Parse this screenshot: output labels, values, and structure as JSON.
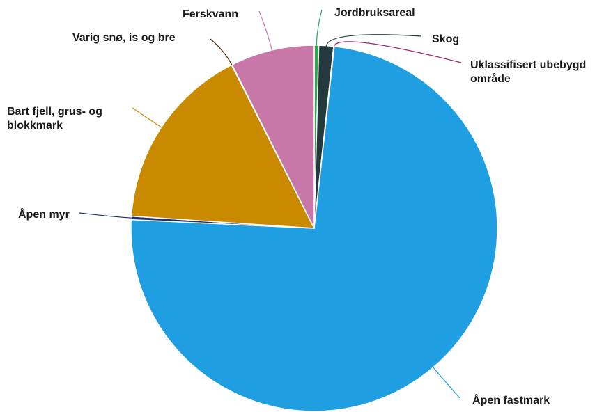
{
  "chart_data": {
    "type": "pie",
    "title": "",
    "data_labels": "category names",
    "slices": [
      {
        "label": "Jordbruksareal",
        "value": 0.4,
        "color": "#2fa84f"
      },
      {
        "label": "Skog",
        "value": 1.3,
        "color": "#24393e"
      },
      {
        "label": "Uklassifisert ubebygd område",
        "value": 0.05,
        "color": "#a0266f"
      },
      {
        "label": "Åpen fastmark",
        "value": 74.0,
        "color": "#1f9fe2"
      },
      {
        "label": "Åpen myr",
        "value": 0.3,
        "color": "#1d2f6f"
      },
      {
        "label": "Bart fjell, grus- og blokkmark",
        "value": 16.5,
        "color": "#c98a00"
      },
      {
        "label": "Varig snø, is og bre",
        "value": 0.05,
        "color": "#5a2a0f"
      },
      {
        "label": "Ferskvann",
        "value": 7.4,
        "color": "#c878a8"
      }
    ]
  }
}
